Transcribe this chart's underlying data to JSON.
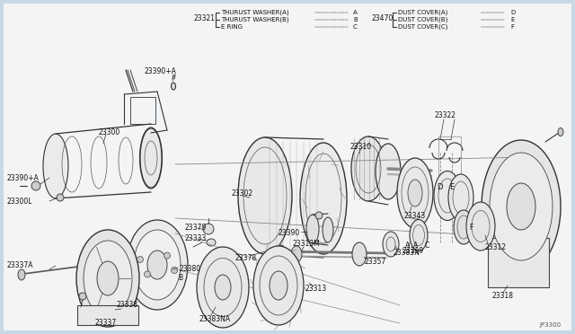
{
  "bg_color": "#F0F4F8",
  "content_bg": "#F5F8FA",
  "line_color": "#444444",
  "text_color": "#111111",
  "diagram_code": "JP3300",
  "legend_left": {
    "label": "23321",
    "items": [
      {
        "text": "THURUST WASHER(A)",
        "suffix": "A"
      },
      {
        "text": "THURUST WASHER(B)",
        "suffix": "B"
      },
      {
        "text": "E RING",
        "suffix": "C"
      }
    ]
  },
  "legend_right": {
    "label": "23470",
    "items": [
      {
        "text": "DUST COVER(A)",
        "suffix": "D"
      },
      {
        "text": "DUST COVER(B)",
        "suffix": "E"
      },
      {
        "text": "DUST COVER(C)",
        "suffix": "F"
      }
    ]
  }
}
